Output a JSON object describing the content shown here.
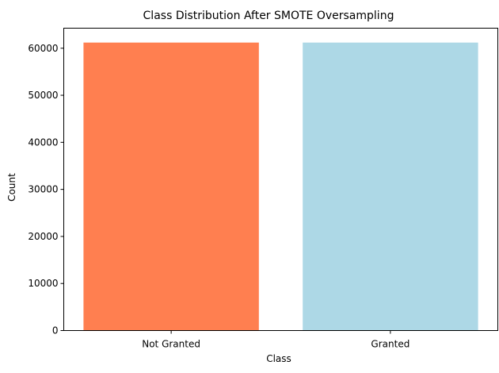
{
  "chart_data": {
    "type": "bar",
    "title": "Class Distribution After SMOTE Oversampling",
    "xlabel": "Class",
    "ylabel": "Count",
    "categories": [
      "Not Granted",
      "Granted"
    ],
    "values": [
      61200,
      61200
    ],
    "colors": [
      "#ff7f50",
      "#add8e6"
    ],
    "ylim": [
      0,
      64260
    ],
    "yticks": [
      0,
      10000,
      20000,
      30000,
      40000,
      50000,
      60000
    ],
    "grid": false,
    "legend": "none"
  }
}
